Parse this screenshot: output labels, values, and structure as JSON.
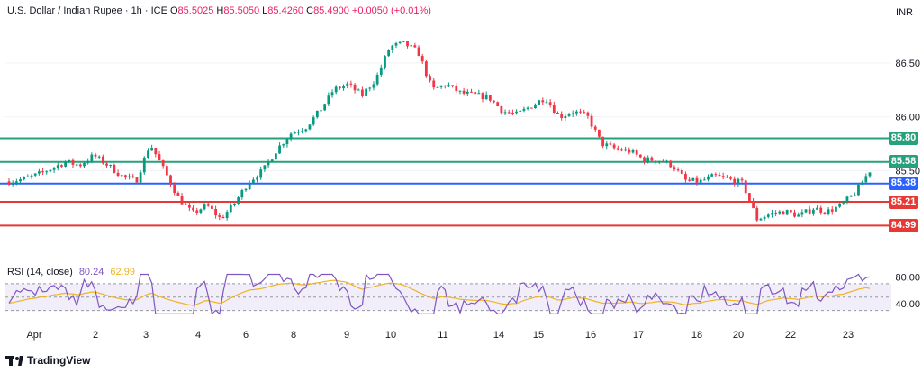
{
  "header": {
    "symbol": "U.S. Dollar / Indian Rupee · 1h · ICE",
    "open_label": "O",
    "open": "85.5025",
    "high_label": "H",
    "high": "85.5050",
    "low_label": "L",
    "low": "85.4260",
    "close_label": "C",
    "close": "85.4900",
    "change": "+0.0050 (+0.01%)"
  },
  "currency": "INR",
  "brand": "TradingView",
  "rsi_header": {
    "label": "RSI (14, close)",
    "rsi_value": "80.24",
    "ma_value": "62.99"
  },
  "colors": {
    "support": "#e53935",
    "resistance": "#26a17b",
    "pivot": "#2962ff",
    "bull": "#089981",
    "bear": "#f23645",
    "rsi": "#7e57c2",
    "rsi_ma": "#f0b323"
  },
  "chart_data": {
    "type": "candlestick",
    "price_axis": {
      "ticks": [
        "86.50",
        "86.00",
        "85.50"
      ],
      "ylim": [
        84.7,
        86.9
      ]
    },
    "x_ticks": [
      "Apr",
      "2",
      "3",
      "4",
      "6",
      "8",
      "9",
      "10",
      "11",
      "14",
      "15",
      "16",
      "17",
      "18",
      "20",
      "22",
      "23"
    ],
    "levels": [
      {
        "label": "85.80",
        "value": 85.8,
        "kind": "resistance"
      },
      {
        "label": "85.58",
        "value": 85.58,
        "kind": "resistance"
      },
      {
        "label": "85.38",
        "value": 85.38,
        "kind": "pivot"
      },
      {
        "label": "85.21",
        "value": 85.21,
        "kind": "support"
      },
      {
        "label": "84.99",
        "value": 84.99,
        "kind": "support"
      }
    ],
    "price_path": [
      85.4,
      85.42,
      85.46,
      85.52,
      85.58,
      85.55,
      85.64,
      85.55,
      85.45,
      85.4,
      85.75,
      85.5,
      85.25,
      85.1,
      85.18,
      85.05,
      85.2,
      85.4,
      85.5,
      85.7,
      85.85,
      85.9,
      86.05,
      86.25,
      86.3,
      86.2,
      86.35,
      86.65,
      86.68,
      86.6,
      86.25,
      86.3,
      86.22,
      86.2,
      86.18,
      86.05,
      86.02,
      86.1,
      86.18,
      86.0,
      86.05,
      86.0,
      85.75,
      85.7,
      85.68,
      85.6,
      85.6,
      85.55,
      85.4,
      85.4,
      85.45,
      85.42,
      85.38,
      85.05,
      85.1,
      85.12,
      85.08,
      85.15,
      85.12,
      85.18,
      85.3,
      85.5
    ],
    "rsi": {
      "ylim": [
        20,
        90
      ],
      "ticks": [
        "80.00",
        "40.00"
      ],
      "band": [
        30,
        70
      ],
      "mid": 50,
      "last_rsi": 80.24,
      "last_ma": 62.99
    }
  }
}
